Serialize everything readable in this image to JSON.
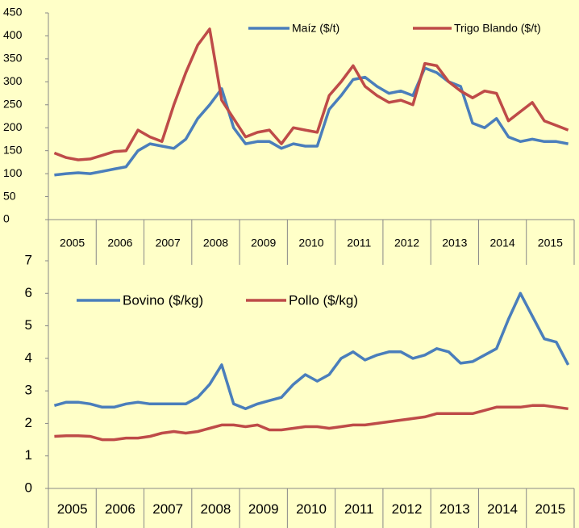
{
  "chart_data": [
    {
      "type": "line",
      "categories": [
        "2005",
        null,
        null,
        null,
        "2006",
        null,
        null,
        null,
        "2007",
        null,
        null,
        null,
        "2008",
        null,
        null,
        null,
        "2009",
        null,
        null,
        null,
        "2010",
        null,
        null,
        null,
        "2011",
        null,
        null,
        null,
        "2012",
        null,
        null,
        null,
        "2013",
        null,
        null,
        null,
        "2014",
        null,
        null,
        null,
        "2015",
        null,
        null,
        null
      ],
      "series": [
        {
          "name": "Maíz ($/t)",
          "color": "#4a7ebb",
          "values": [
            97,
            100,
            102,
            100,
            105,
            110,
            115,
            150,
            165,
            160,
            155,
            175,
            220,
            250,
            285,
            200,
            165,
            170,
            170,
            155,
            165,
            160,
            160,
            240,
            270,
            305,
            310,
            290,
            275,
            280,
            270,
            330,
            320,
            300,
            290,
            210,
            200,
            220,
            180,
            170,
            175,
            170,
            170,
            165
          ]
        },
        {
          "name": "Trigo Blando ($/t)",
          "color": "#be4b48",
          "values": [
            145,
            135,
            130,
            132,
            140,
            148,
            150,
            195,
            180,
            170,
            250,
            320,
            380,
            415,
            260,
            220,
            180,
            190,
            195,
            165,
            200,
            195,
            190,
            270,
            300,
            335,
            290,
            270,
            255,
            260,
            250,
            340,
            335,
            300,
            280,
            265,
            280,
            275,
            215,
            235,
            255,
            215,
            205,
            195
          ]
        }
      ],
      "ylim": [
        0,
        450
      ],
      "yticks": [
        0,
        50,
        100,
        150,
        200,
        250,
        300,
        350,
        400,
        450
      ],
      "legend": "top-right",
      "grid": false
    },
    {
      "type": "line",
      "categories": [
        "2005",
        null,
        null,
        null,
        "2006",
        null,
        null,
        null,
        "2007",
        null,
        null,
        null,
        "2008",
        null,
        null,
        null,
        "2009",
        null,
        null,
        null,
        "2010",
        null,
        null,
        null,
        "2011",
        null,
        null,
        null,
        "2012",
        null,
        null,
        null,
        "2013",
        null,
        null,
        null,
        "2014",
        null,
        null,
        null,
        "2015",
        null,
        null,
        null
      ],
      "series": [
        {
          "name": "Bovino ($/kg)",
          "color": "#4a7ebb",
          "values": [
            2.55,
            2.65,
            2.65,
            2.6,
            2.5,
            2.5,
            2.6,
            2.65,
            2.6,
            2.6,
            2.6,
            2.6,
            2.8,
            3.2,
            3.8,
            2.6,
            2.45,
            2.6,
            2.7,
            2.8,
            3.2,
            3.5,
            3.3,
            3.5,
            4.0,
            4.2,
            3.95,
            4.1,
            4.2,
            4.2,
            4.0,
            4.1,
            4.3,
            4.2,
            3.85,
            3.9,
            4.1,
            4.3,
            5.2,
            6.0,
            5.3,
            4.6,
            4.5,
            3.8
          ]
        },
        {
          "name": "Pollo ($/kg)",
          "color": "#be4b48",
          "values": [
            1.6,
            1.62,
            1.62,
            1.6,
            1.5,
            1.5,
            1.55,
            1.55,
            1.6,
            1.7,
            1.75,
            1.7,
            1.75,
            1.85,
            1.95,
            1.95,
            1.9,
            1.95,
            1.8,
            1.8,
            1.85,
            1.9,
            1.9,
            1.85,
            1.9,
            1.95,
            1.95,
            2.0,
            2.05,
            2.1,
            2.15,
            2.2,
            2.3,
            2.3,
            2.3,
            2.3,
            2.4,
            2.5,
            2.5,
            2.5,
            2.55,
            2.55,
            2.5,
            2.45
          ]
        }
      ],
      "ylim": [
        0,
        7
      ],
      "yticks": [
        0,
        1,
        2,
        3,
        4,
        5,
        6,
        7
      ],
      "legend": "upper-left",
      "grid": false
    }
  ]
}
